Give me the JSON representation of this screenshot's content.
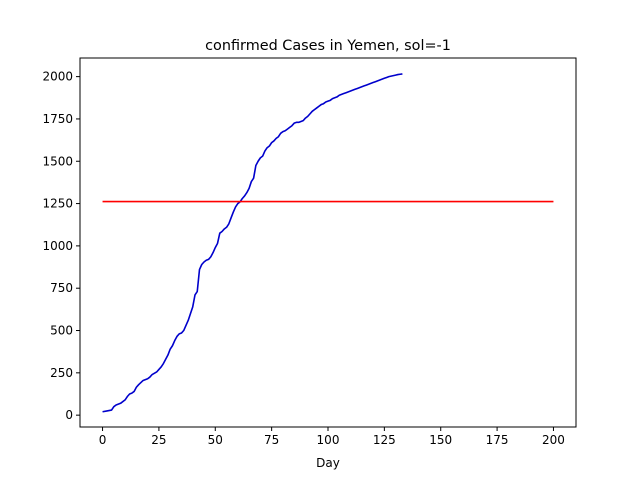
{
  "chart_data": {
    "type": "line",
    "title": "confirmed Cases in Yemen, sol=-1",
    "xlabel": "Day",
    "ylabel": "",
    "xlim": [
      -10,
      210
    ],
    "ylim": [
      -70,
      2110
    ],
    "xticks": [
      0,
      25,
      50,
      75,
      100,
      125,
      150,
      175,
      200
    ],
    "yticks": [
      0,
      250,
      500,
      750,
      1000,
      1250,
      1500,
      1750,
      2000
    ],
    "grid": false,
    "series": [
      {
        "color": "#0000cc",
        "x": [
          0,
          2,
          4,
          5,
          6,
          8,
          10,
          11,
          12,
          13,
          14,
          15,
          16,
          18,
          20,
          21,
          22,
          24,
          25,
          26,
          27,
          28,
          29,
          30,
          31,
          32,
          33,
          34,
          35,
          36,
          37,
          38,
          39,
          40,
          41,
          42,
          43,
          44,
          45,
          46,
          47,
          48,
          49,
          50,
          51,
          52,
          53,
          54,
          55,
          56,
          57,
          58,
          59,
          60,
          61,
          62,
          63,
          64,
          65,
          66,
          67,
          68,
          69,
          70,
          71,
          72,
          73,
          74,
          75,
          76,
          77,
          78,
          79,
          80,
          81,
          82,
          83,
          84,
          85,
          86,
          87,
          88,
          89,
          90,
          91,
          92,
          93,
          94,
          95,
          96,
          97,
          98,
          99,
          100,
          101,
          102,
          103,
          104,
          105,
          106,
          107,
          108,
          109,
          110,
          111,
          112,
          113,
          114,
          115,
          116,
          117,
          118,
          119,
          120,
          121,
          122,
          123,
          124,
          125,
          126,
          127,
          128,
          129,
          130,
          131,
          132,
          133
        ],
        "y": [
          20,
          25,
          30,
          50,
          60,
          70,
          90,
          110,
          125,
          130,
          140,
          165,
          180,
          205,
          215,
          225,
          240,
          255,
          270,
          285,
          305,
          330,
          355,
          390,
          410,
          440,
          465,
          480,
          485,
          500,
          530,
          560,
          600,
          640,
          710,
          730,
          860,
          890,
          905,
          915,
          920,
          935,
          960,
          990,
          1015,
          1075,
          1085,
          1100,
          1110,
          1130,
          1165,
          1200,
          1230,
          1250,
          1260,
          1280,
          1295,
          1315,
          1340,
          1380,
          1400,
          1475,
          1500,
          1520,
          1530,
          1560,
          1580,
          1590,
          1610,
          1620,
          1635,
          1645,
          1665,
          1675,
          1680,
          1690,
          1700,
          1710,
          1725,
          1730,
          1730,
          1735,
          1740,
          1755,
          1765,
          1780,
          1795,
          1805,
          1815,
          1825,
          1835,
          1840,
          1850,
          1855,
          1860,
          1870,
          1875,
          1880,
          1890,
          1895,
          1900,
          1905,
          1910,
          1915,
          1920,
          1925,
          1930,
          1935,
          1940,
          1945,
          1950,
          1955,
          1960,
          1965,
          1970,
          1975,
          1980,
          1985,
          1990,
          1995,
          2000,
          2003,
          2006,
          2009,
          2012,
          2014,
          2016
        ]
      },
      {
        "color": "#ff0000",
        "x": [
          0,
          200
        ],
        "y": [
          1262,
          1262
        ]
      }
    ]
  }
}
